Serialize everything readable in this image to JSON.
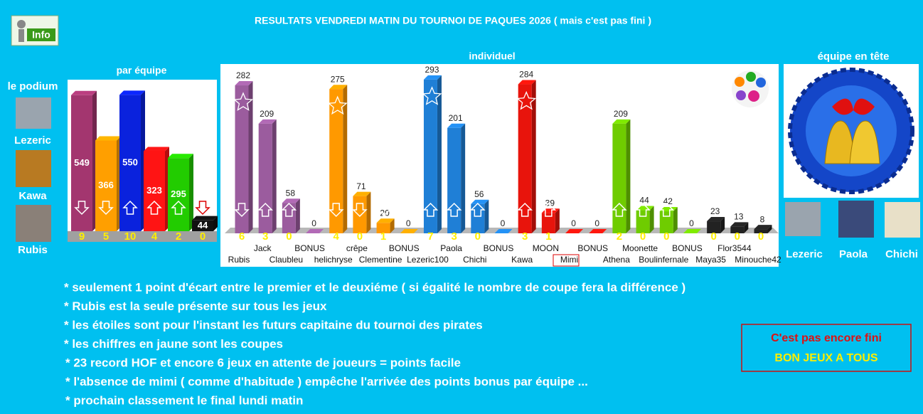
{
  "title": "RESULTATS VENDREDI MATIN DU TOURNOI DE PAQUES 2026 ( mais c'est pas fini )",
  "podium": {
    "heading": "le podium",
    "names": [
      "Lezeric",
      "Kawa",
      "Rubis"
    ]
  },
  "chart_data": [
    {
      "type": "bar",
      "title": "par équipe",
      "values": [
        549,
        366,
        550,
        323,
        295,
        44
      ],
      "colors": [
        "#a3366f",
        "#ff9f00",
        "#0a22dd",
        "#ff1414",
        "#22cc00",
        "#111111"
      ],
      "cups": [
        9,
        5,
        10,
        4,
        2,
        0
      ],
      "trend": [
        "down",
        "down",
        "up",
        "up",
        "up",
        "down"
      ],
      "ylim": [
        0,
        600
      ]
    },
    {
      "type": "bar",
      "title": "individuel",
      "categories": [
        "Rubis",
        "Jack",
        "Claubleu",
        "BONUS",
        "helichryse",
        "crêpe",
        "Clementine",
        "BONUS",
        "Lezeric100",
        "Paola",
        "Chichi",
        "BONUS",
        "Kawa",
        "MOON",
        "Mimi",
        "BONUS",
        "Athena",
        "Moonette",
        "Boulinfernale",
        "BONUS",
        "Maya35",
        "Flor3544",
        "Minouche42"
      ],
      "values": [
        282,
        209,
        58,
        0,
        275,
        71,
        20,
        0,
        293,
        201,
        56,
        0,
        284,
        39,
        0,
        0,
        209,
        44,
        42,
        0,
        23,
        13,
        8
      ],
      "colors": [
        "#9b5c9e",
        "#9b5c9e",
        "#9b5c9e",
        "#9b5c9e",
        "#ff9900",
        "#ff9900",
        "#ff9900",
        "#ff9900",
        "#1f7fd6",
        "#1f7fd6",
        "#1f7fd6",
        "#1f7fd6",
        "#e8140c",
        "#e8140c",
        "#e8140c",
        "#e8140c",
        "#6fcc00",
        "#6fcc00",
        "#6fcc00",
        "#6fcc00",
        "#222222",
        "#222222",
        "#222222"
      ],
      "cups": [
        6,
        3,
        0,
        null,
        4,
        0,
        1,
        null,
        7,
        3,
        0,
        null,
        3,
        1,
        null,
        null,
        2,
        0,
        0,
        null,
        0,
        0,
        0
      ],
      "trend": [
        "down",
        "up",
        "up",
        null,
        "down",
        "down",
        "right",
        null,
        "up",
        "up",
        "up",
        null,
        "up",
        "up",
        null,
        null,
        "up",
        "up",
        "up",
        null,
        null,
        null,
        null
      ],
      "stars": [
        true,
        false,
        false,
        false,
        true,
        false,
        false,
        false,
        true,
        false,
        false,
        false,
        true,
        false,
        false,
        false,
        false,
        false,
        false,
        false,
        false,
        false,
        false
      ],
      "ylim": [
        0,
        320
      ]
    }
  ],
  "leader": {
    "heading": "équipe en tête",
    "names": [
      "Lezeric",
      "Paola",
      "Chichi"
    ]
  },
  "notes": [
    "*  seulement 1 point d'écart entre le premier et le deuxiéme ( si égalité le nombre de coupe fera la différence )",
    "*  Rubis est la seule présente sur tous les jeux",
    "*  les étoiles sont pour l'instant les futurs capitaine du tournoi des pirates",
    "*  les chiffres en jaune sont les coupes",
    "*  23 record HOF et encore 6 jeux en attente de joueurs = points facile",
    "*  l'absence de mimi ( comme d'habitude ) empêche l'arrivée des points bonus par équipe ...",
    "*  prochain classement le final lundi matin"
  ],
  "box": [
    "C'est pas encore fini",
    "BON JEUX A TOUS"
  ]
}
